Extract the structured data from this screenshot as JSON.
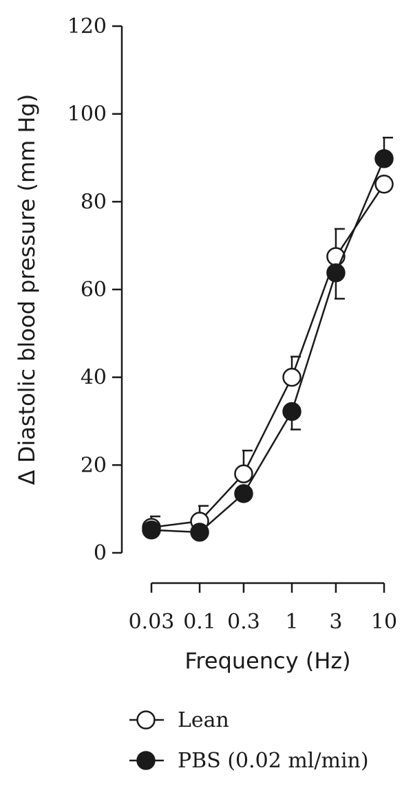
{
  "chart_data": {
    "type": "line",
    "title": "",
    "xlabel": "Frequency (Hz)",
    "ylabel": "Δ Diastolic blood pressure (mm Hg)",
    "x_scale": "log",
    "x": [
      0.03,
      0.1,
      0.3,
      1,
      3,
      10
    ],
    "x_tick_labels": [
      "0.03",
      "0.1",
      "0.3",
      "1",
      "3",
      "10"
    ],
    "ylim": [
      0,
      120
    ],
    "y_ticks": [
      0,
      20,
      40,
      60,
      80,
      100,
      120
    ],
    "grid": false,
    "legend_position": "bottom-left",
    "series": [
      {
        "name": "Lean",
        "marker": "open-circle",
        "values": [
          5.8,
          7.2,
          18,
          40,
          67.5,
          84
        ],
        "error_upper": [
          8.3,
          10.7,
          23.3,
          44.7,
          73.8,
          84
        ],
        "error_lower": [
          5.8,
          7.2,
          18,
          40,
          67.5,
          84
        ]
      },
      {
        "name": "PBS (0.02 ml/min)",
        "marker": "filled-circle",
        "values": [
          5.2,
          4.7,
          13.5,
          32.2,
          63.8,
          89.8
        ],
        "error_upper": [
          5.2,
          4.7,
          13.5,
          32.2,
          63.8,
          94.6
        ],
        "error_lower": [
          5.2,
          4.7,
          13.5,
          28.1,
          57.9,
          89.8
        ]
      }
    ],
    "colors": {
      "ink": "#1a1a1a",
      "background": "#ffffff"
    }
  }
}
